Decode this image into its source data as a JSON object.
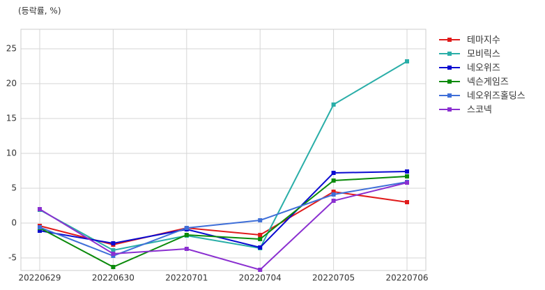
{
  "chart_data": {
    "type": "line",
    "unit_label": "(등락률, %)",
    "categories": [
      "20220629",
      "20220630",
      "20220701",
      "20220704",
      "20220705",
      "20220706"
    ],
    "series": [
      {
        "name": "테마지수",
        "color": "#e01b1b",
        "values": [
          -0.4,
          -3.1,
          -0.7,
          -1.7,
          4.5,
          3.0
        ]
      },
      {
        "name": "모비릭스",
        "color": "#2aaea8",
        "values": [
          1.9,
          -3.9,
          -1.8,
          -3.6,
          17.0,
          23.2
        ]
      },
      {
        "name": "네오위즈",
        "color": "#0a0ad0",
        "values": [
          -1.1,
          -2.9,
          -0.9,
          -3.5,
          7.2,
          7.4
        ]
      },
      {
        "name": "넥슨게임즈",
        "color": "#0a8a0a",
        "values": [
          -0.7,
          -6.3,
          -1.7,
          -2.3,
          6.1,
          6.7
        ]
      },
      {
        "name": "네오위즈홀딩스",
        "color": "#3f6fd8",
        "values": [
          -0.6,
          -4.7,
          -0.7,
          0.4,
          4.1,
          5.9
        ]
      },
      {
        "name": "스코넥",
        "color": "#8a2fd0",
        "values": [
          2.0,
          -4.4,
          -3.7,
          -6.7,
          3.2,
          5.8
        ]
      }
    ],
    "ylim": [
      -6.8,
      27.8
    ],
    "yticks": [
      -5,
      0,
      5,
      10,
      15,
      20,
      25
    ],
    "grid": true,
    "legend": "outside-right",
    "marker": "square"
  }
}
